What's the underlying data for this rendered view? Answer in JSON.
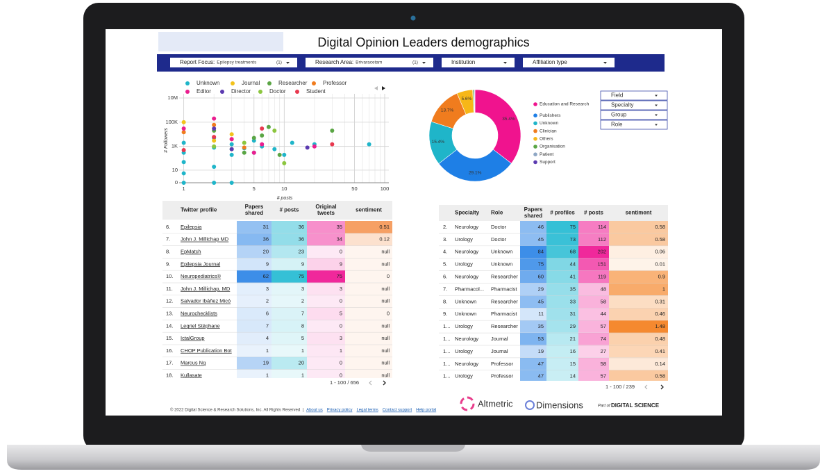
{
  "header": {
    "title": "Digital Opinion Leaders demographics"
  },
  "filters": [
    {
      "label": "Report Focus:",
      "value": "Epilepsy treatments",
      "count": "(1)"
    },
    {
      "label": "Research Area:",
      "value": "Brivaracetam",
      "count": "(1)"
    },
    {
      "label": "Institution"
    },
    {
      "label": "Affiliation type"
    }
  ],
  "side_filters": [
    "Field",
    "Specialty",
    "Group",
    "Role"
  ],
  "chart_data": [
    {
      "type": "scatter",
      "xlabel": "# posts",
      "ylabel": "# Followers",
      "xscale": "log",
      "yscale": "symlog",
      "xlim": [
        0.9,
        110
      ],
      "ylim": [
        0,
        10000000
      ],
      "xticks": [
        1,
        5,
        10,
        50,
        100
      ],
      "yticks": [
        0,
        10,
        {
          "value": 1000,
          "label": "1K"
        },
        {
          "value": 100000,
          "label": "100K"
        },
        {
          "value": 10000000,
          "label": "10M"
        }
      ],
      "grid": true,
      "series": [
        {
          "name": "Unknown",
          "color": "#1fb5c9",
          "x": [
            1,
            1,
            1,
            1,
            1,
            2,
            2,
            2,
            2,
            3,
            3,
            3,
            4,
            5,
            5,
            6,
            8,
            10,
            12,
            20,
            70
          ],
          "values": [
            2000,
            300,
            50,
            5,
            0,
            5000,
            800,
            20,
            0,
            1500,
            200,
            0,
            700,
            3000,
            300,
            1000,
            600,
            200,
            2000,
            1500,
            1500
          ]
        },
        {
          "name": "Journal",
          "color": "#f2c21b",
          "x": [
            1,
            2,
            3
          ],
          "values": [
            100000,
            3000,
            10000
          ]
        },
        {
          "name": "Researcher",
          "color": "#5aa544",
          "x": [
            2,
            3,
            4,
            5,
            6,
            7,
            9,
            30
          ],
          "values": [
            20000,
            600,
            300,
            5000,
            8000,
            40000,
            200,
            20000
          ]
        },
        {
          "name": "Professor",
          "color": "#f07c1e",
          "x": [
            1,
            2,
            3,
            4
          ],
          "values": [
            15000,
            60000,
            4000,
            800
          ]
        },
        {
          "name": "Editor",
          "color": "#ea1e8f",
          "x": [
            1,
            2,
            3,
            5,
            6,
            20
          ],
          "values": [
            30000,
            200000,
            4000,
            300,
            1500,
            1000
          ]
        },
        {
          "name": "Director",
          "color": "#5b3ab0",
          "x": [
            2,
            3,
            17
          ],
          "values": [
            30000,
            600,
            800
          ]
        },
        {
          "name": "Doctor",
          "color": "#8cc63f",
          "x": [
            2,
            4,
            8,
            10
          ],
          "values": [
            1000,
            2000,
            20000,
            40
          ]
        },
        {
          "name": "Student",
          "color": "#e8384f",
          "x": [
            1,
            2,
            6,
            30
          ],
          "values": [
            500,
            6000,
            30000,
            1500
          ]
        }
      ]
    },
    {
      "type": "pie",
      "categories": [
        "Education and Research",
        "Publishers",
        "Unknown",
        "Clinician",
        "Others",
        "Organisation",
        "Patient",
        "Support"
      ],
      "values": [
        35.4,
        29.1,
        15.4,
        13.7,
        5.6,
        0.4,
        0.2,
        0.2
      ],
      "value_labels": [
        "35.4%",
        "29.1%",
        "15.4%",
        "13.7%",
        "5.6%",
        null,
        null,
        null
      ],
      "colors": [
        "#f0138e",
        "#1e7fe6",
        "#1fb5c9",
        "#f07c1e",
        "#f7b718",
        "#5aa544",
        "#8ea7c4",
        "#5b3ab0"
      ]
    }
  ],
  "tables": [
    {
      "columns": [
        [
          ""
        ],
        [
          "Twitter profile"
        ],
        [
          "Papers",
          "shared"
        ],
        [
          "# posts"
        ],
        [
          "Original",
          "tweets"
        ],
        [
          "sentiment"
        ]
      ],
      "rows": [
        [
          "6.",
          "Epilepsia",
          31,
          36,
          35,
          0.51
        ],
        [
          "7.",
          "John J. Millichap MD",
          36,
          36,
          34,
          0.12
        ],
        [
          "8.",
          "EpMatch",
          20,
          23,
          0,
          "null"
        ],
        [
          "9.",
          "Epilepsia Journal",
          9,
          9,
          9,
          "null"
        ],
        [
          "10.",
          "Neuropediatrics®",
          62,
          75,
          75,
          0
        ],
        [
          "11.",
          "John J. Millichap, MD",
          3,
          3,
          3,
          "null"
        ],
        [
          "12.",
          "Salvador Ibáñez Micó",
          2,
          2,
          0,
          "null"
        ],
        [
          "13.",
          "Neurochecklists",
          6,
          7,
          5,
          0
        ],
        [
          "14.",
          "Legriel Stéphane",
          7,
          8,
          0,
          "null"
        ],
        [
          "15.",
          "IctalGroup",
          4,
          5,
          3,
          "null"
        ],
        [
          "16.",
          "CHOP Publication Bot",
          1,
          1,
          1,
          "null"
        ],
        [
          "17.",
          "Marcus Ng",
          19,
          20,
          0,
          "null"
        ],
        [
          "18.",
          "Kullasate",
          1,
          1,
          0,
          "null"
        ]
      ],
      "pagination": "1 - 100 / 656"
    },
    {
      "columns": [
        [
          ""
        ],
        [
          "Specialty"
        ],
        [
          "Role"
        ],
        [
          "Papers",
          "shared"
        ],
        [
          "# profiles"
        ],
        [
          "# posts"
        ],
        [
          "sentiment"
        ]
      ],
      "rows": [
        [
          "2.",
          "Neurology",
          "Doctor",
          46,
          75,
          114,
          0.58
        ],
        [
          "3.",
          "Urology",
          "Doctor",
          45,
          73,
          112,
          0.58
        ],
        [
          "4.",
          "Neurology",
          "Unknown",
          84,
          68,
          202,
          0.06
        ],
        [
          "5.",
          "Urology",
          "Unknown",
          75,
          44,
          151,
          0.01
        ],
        [
          "6.",
          "Neurology",
          "Researcher",
          60,
          41,
          119,
          0.9
        ],
        [
          "7.",
          "Pharmacol...",
          "Pharmacist",
          29,
          35,
          48,
          1
        ],
        [
          "8.",
          "Unknown",
          "Researcher",
          45,
          33,
          58,
          0.31
        ],
        [
          "9.",
          "Unknown",
          "Pharmacist",
          11,
          31,
          44,
          0.46
        ],
        [
          "1...",
          "Urology",
          "Researcher",
          35,
          29,
          57,
          1.48
        ],
        [
          "1...",
          "Neurology",
          "Journal",
          53,
          21,
          74,
          0.48
        ],
        [
          "1...",
          "Urology",
          "Journal",
          19,
          16,
          27,
          0.41
        ],
        [
          "1...",
          "Neurology",
          "Professor",
          47,
          15,
          58,
          0.14
        ],
        [
          "1...",
          "Urology",
          "Professor",
          47,
          14,
          57,
          0.58
        ]
      ],
      "pagination": "1 - 100 / 239"
    }
  ],
  "footer": {
    "copyright": "© 2022 Digital Science & Research Solutions, Inc. All Rights Reserved  |",
    "links": [
      "About us",
      "Privacy policy",
      "Legal terms",
      "Contact support",
      "Help portal"
    ],
    "logos": [
      "Altmetric",
      "Dimensions",
      "Part of",
      "DIGITAL SCIENCE"
    ]
  }
}
